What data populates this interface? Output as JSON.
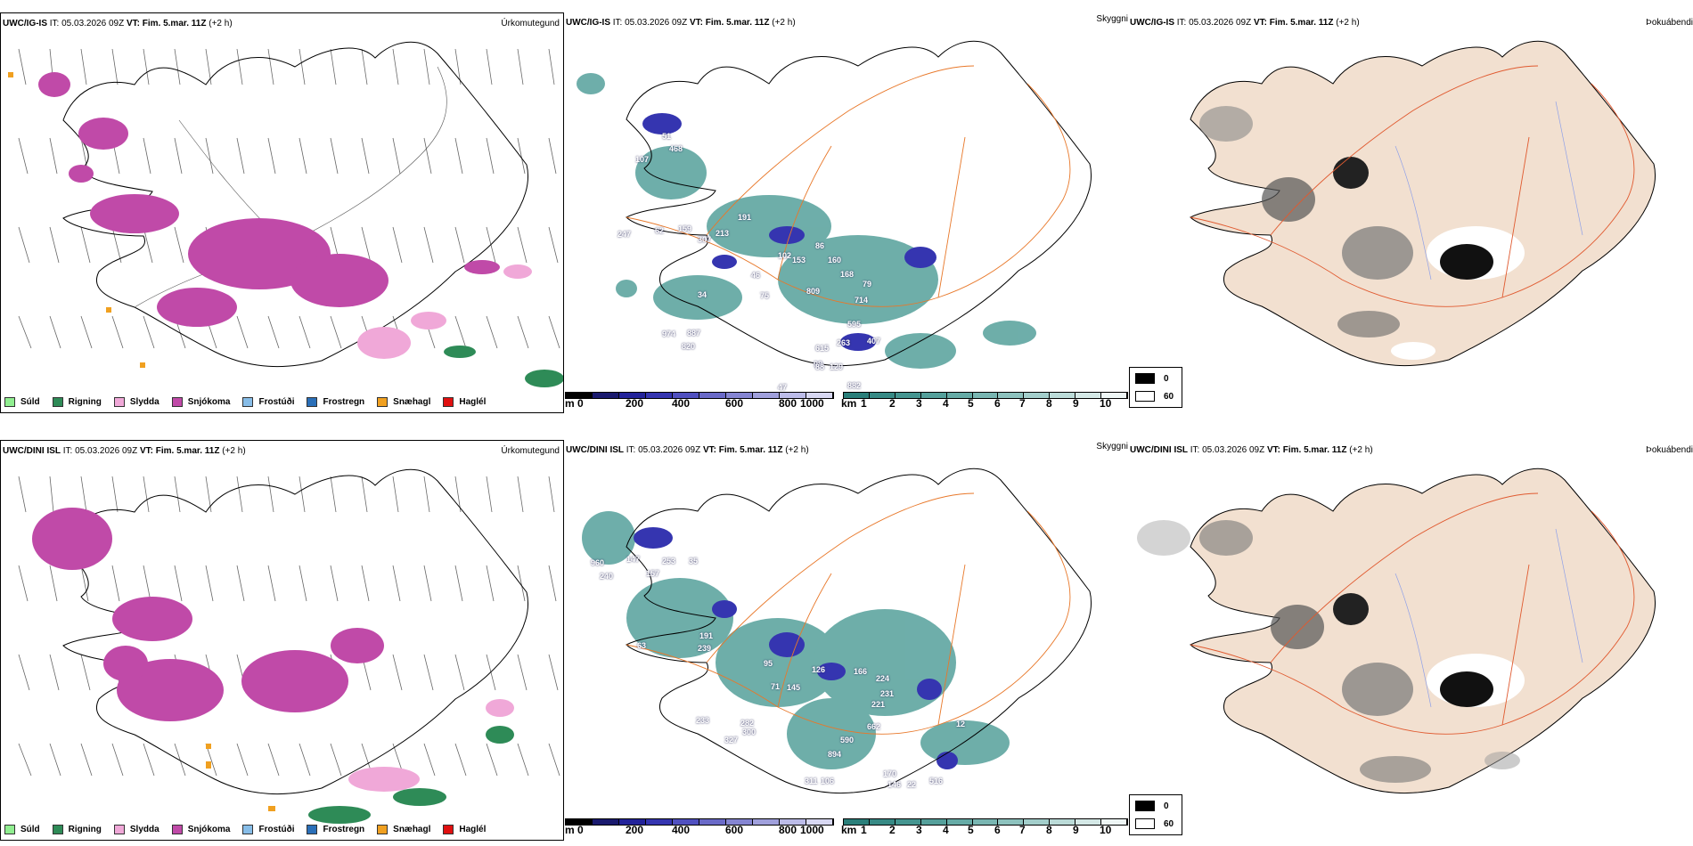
{
  "rows": [
    {
      "model": "UWC/IG-IS",
      "it_label": "IT:",
      "it_value": "05.03.2026 09Z",
      "vt_label": "VT:",
      "vt_value": "Fim. 5.mar. 11Z",
      "lead": "(+2 h)"
    },
    {
      "model": "UWC/DINI ISL",
      "it_label": "IT:",
      "it_value": "05.03.2026 09Z",
      "vt_label": "VT:",
      "vt_value": "Fim. 5.mar. 11Z",
      "lead": "(+2 h)"
    }
  ],
  "panel_tags": {
    "precip": "Úrkomutegund",
    "cloud": "Skyggni",
    "fog": "Þokuábendi"
  },
  "precip_legend": [
    {
      "label": "Súld",
      "color": "#90ee90"
    },
    {
      "label": "Rigning",
      "color": "#2e8b57"
    },
    {
      "label": "Slydda",
      "color": "#f0a8d8"
    },
    {
      "label": "Snjókoma",
      "color": "#c04aa8"
    },
    {
      "label": "Frostúði",
      "color": "#87bde8"
    },
    {
      "label": "Frostregn",
      "color": "#2a6fb8"
    },
    {
      "label": "Snæhagl",
      "color": "#f0a020"
    },
    {
      "label": "Haglél",
      "color": "#e01010"
    }
  ],
  "ceiling_scale": {
    "unit": "m",
    "ticks": [
      "0",
      "200",
      "400",
      "600",
      "800",
      "1000"
    ],
    "colors": [
      "#000000",
      "#1a1a6e",
      "#23239a",
      "#3535b0",
      "#5050c0",
      "#6a6ac8",
      "#8585d2",
      "#a0a0dc",
      "#bcbce8",
      "#d8d8f2"
    ]
  },
  "visibility_scale": {
    "unit": "km",
    "ticks": [
      "1",
      "2",
      "3",
      "4",
      "5",
      "6",
      "7",
      "8",
      "9",
      "10"
    ],
    "colors": [
      "#2a7f7a",
      "#378a85",
      "#459590",
      "#55a09b",
      "#66aba6",
      "#79b6b2",
      "#8dc2be",
      "#a3cecb",
      "#bbdbd8",
      "#d4e8e6",
      "#eef6f5"
    ]
  },
  "fog_legend": [
    {
      "label": "0",
      "color": "#000000"
    },
    {
      "label": "60",
      "color": "#ffffff"
    }
  ],
  "ceiling_values": {
    "top": [
      "468",
      "107",
      "51",
      "191",
      "247",
      "159",
      "62",
      "307",
      "213",
      "102",
      "86",
      "153",
      "160",
      "46",
      "75",
      "34",
      "809",
      "168",
      "79",
      "714",
      "595",
      "407",
      "263",
      "615",
      "98",
      "974",
      "887",
      "820",
      "88",
      "129",
      "882",
      "47"
    ],
    "bottom": [
      "960",
      "147",
      "240",
      "157",
      "253",
      "35",
      "191",
      "63",
      "239",
      "95",
      "71",
      "145",
      "126",
      "166",
      "224",
      "231",
      "221",
      "662",
      "300",
      "233",
      "282",
      "327",
      "894",
      "590",
      "170",
      "146",
      "22",
      "516",
      "311",
      "106",
      "12"
    ]
  },
  "colors": {
    "land_fog": "#f2e0d0",
    "roads": "#e8782a",
    "rivers": "#8fa0e8",
    "coast": "#000000"
  }
}
